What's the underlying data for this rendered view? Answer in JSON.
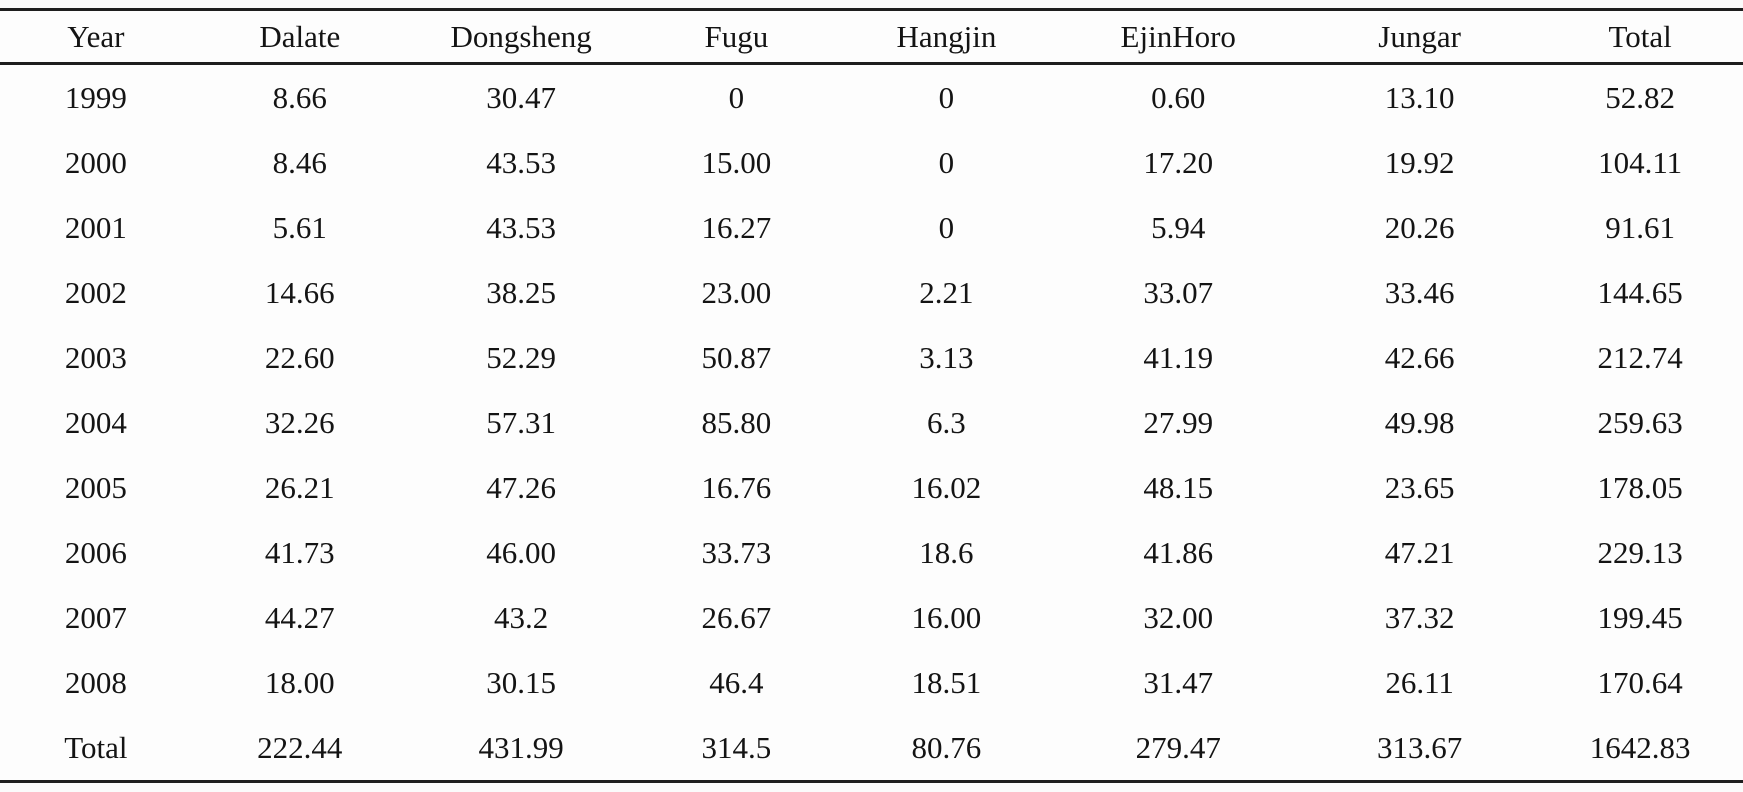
{
  "colors": {
    "background": "#fbfbfb",
    "rule": "#1e1e1e",
    "text": "#141414"
  },
  "table": {
    "columns": [
      "Year",
      "Dalate",
      "Dongsheng",
      "Fugu",
      "Hangjin",
      "EjinHoro",
      "Jungar",
      "Total"
    ],
    "rows": [
      [
        "1999",
        "8.66",
        "30.47",
        "0",
        "0",
        "0.60",
        "13.10",
        "52.82"
      ],
      [
        "2000",
        "8.46",
        "43.53",
        "15.00",
        "0",
        "17.20",
        "19.92",
        "104.11"
      ],
      [
        "2001",
        "5.61",
        "43.53",
        "16.27",
        "0",
        "5.94",
        "20.26",
        "91.61"
      ],
      [
        "2002",
        "14.66",
        "38.25",
        "23.00",
        "2.21",
        "33.07",
        "33.46",
        "144.65"
      ],
      [
        "2003",
        "22.60",
        "52.29",
        "50.87",
        "3.13",
        "41.19",
        "42.66",
        "212.74"
      ],
      [
        "2004",
        "32.26",
        "57.31",
        "85.80",
        "6.3",
        "27.99",
        "49.98",
        "259.63"
      ],
      [
        "2005",
        "26.21",
        "47.26",
        "16.76",
        "16.02",
        "48.15",
        "23.65",
        "178.05"
      ],
      [
        "2006",
        "41.73",
        "46.00",
        "33.73",
        "18.6",
        "41.86",
        "47.21",
        "229.13"
      ],
      [
        "2007",
        "44.27",
        "43.2",
        "26.67",
        "16.00",
        "32.00",
        "37.32",
        "199.45"
      ],
      [
        "2008",
        "18.00",
        "30.15",
        "46.4",
        "18.51",
        "31.47",
        "26.11",
        "170.64"
      ],
      [
        "Total",
        "222.44",
        "431.99",
        "314.5",
        "80.76",
        "279.47",
        "313.67",
        "1642.83"
      ]
    ]
  },
  "chart_data": {
    "type": "table",
    "categories": [
      "1999",
      "2000",
      "2001",
      "2002",
      "2003",
      "2004",
      "2005",
      "2006",
      "2007",
      "2008",
      "Total"
    ],
    "series": [
      {
        "name": "Dalate",
        "values": [
          8.66,
          8.46,
          5.61,
          14.66,
          22.6,
          32.26,
          26.21,
          41.73,
          44.27,
          18.0,
          222.44
        ]
      },
      {
        "name": "Dongsheng",
        "values": [
          30.47,
          43.53,
          43.53,
          38.25,
          52.29,
          57.31,
          47.26,
          46.0,
          43.2,
          30.15,
          431.99
        ]
      },
      {
        "name": "Fugu",
        "values": [
          0,
          15.0,
          16.27,
          23.0,
          50.87,
          85.8,
          16.76,
          33.73,
          26.67,
          46.4,
          314.5
        ]
      },
      {
        "name": "Hangjin",
        "values": [
          0,
          0,
          0,
          2.21,
          3.13,
          6.3,
          16.02,
          18.6,
          16.0,
          18.51,
          80.76
        ]
      },
      {
        "name": "EjinHoro",
        "values": [
          0.6,
          17.2,
          5.94,
          33.07,
          41.19,
          27.99,
          48.15,
          41.86,
          32.0,
          31.47,
          279.47
        ]
      },
      {
        "name": "Jungar",
        "values": [
          13.1,
          19.92,
          20.26,
          33.46,
          42.66,
          49.98,
          23.65,
          47.21,
          37.32,
          26.11,
          313.67
        ]
      },
      {
        "name": "Total",
        "values": [
          52.82,
          104.11,
          91.61,
          144.65,
          212.74,
          259.63,
          178.05,
          229.13,
          199.45,
          170.64,
          1642.83
        ]
      }
    ],
    "title": "",
    "xlabel": "Year",
    "ylabel": ""
  }
}
